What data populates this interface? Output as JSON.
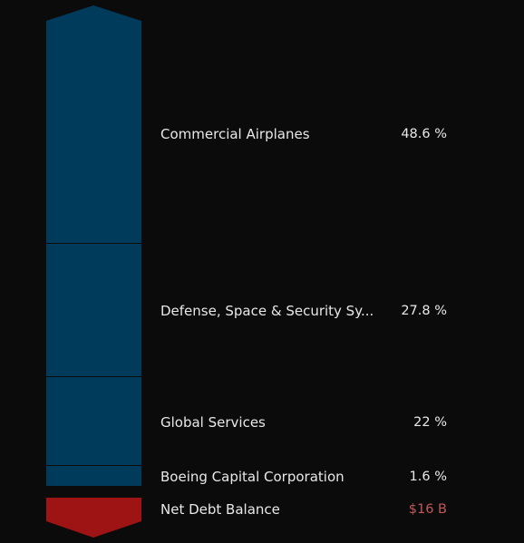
{
  "segments": [
    {
      "label": "Commercial Airplanes",
      "value_text": "48.6 %",
      "percent": 48.6
    },
    {
      "label": "Defense, Space & Security Sy...",
      "value_text": "27.8 %",
      "percent": 27.8
    },
    {
      "label": "Global Services",
      "value_text": "22 %",
      "percent": 22
    },
    {
      "label": "Boeing Capital Corporation",
      "value_text": "1.6 %",
      "percent": 1.6
    }
  ],
  "net_debt": {
    "label": "Net Debt Balance",
    "value_text": "$16 B"
  },
  "colors": {
    "background": "#0b0b0c",
    "segment_fill": "#003b5c",
    "segment_divider": "#0b0b0c",
    "debt_fill": "#9e1414",
    "debt_value_text": "#c0585a",
    "label_text": "#e8e8e8"
  }
}
